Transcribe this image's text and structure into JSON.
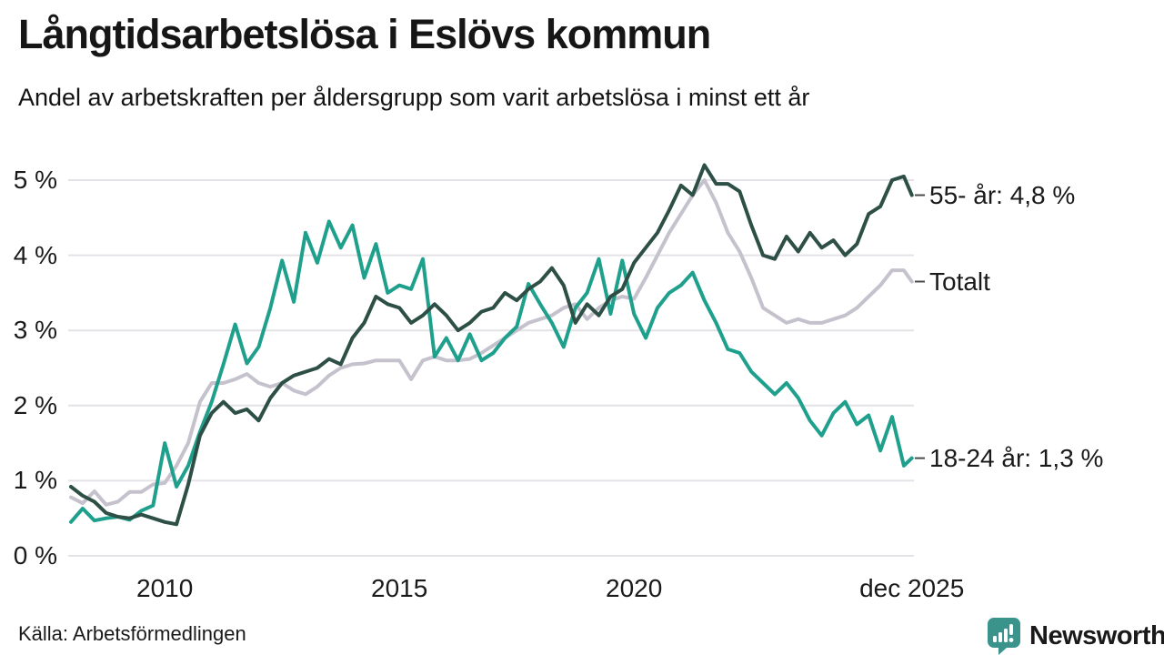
{
  "header": {
    "title": "Långtidsarbetslösa i Eslövs kommun",
    "subtitle": "Andel av arbetskraften per åldersgrupp som varit arbetslösa i minst ett år"
  },
  "footer": {
    "source": "Källa: Arbetsförmedlingen",
    "logo_text": "Newsworthy"
  },
  "colors": {
    "teal_18_24": "#1fa08d",
    "dark_green_55": "#2d4f45",
    "gray_total": "#c5c2cd",
    "grid": "#e4e2e6",
    "text": "#1a1a1a",
    "logo_teal": "#3a948b"
  },
  "chart_data": {
    "type": "line",
    "title": "Långtidsarbetslösa i Eslövs kommun",
    "subtitle": "Andel av arbetskraften per åldersgrupp som varit arbetslösa i minst ett år",
    "grid": true,
    "legend_position": "right-end-labels",
    "xlim": [
      2008,
      2026.2
    ],
    "ylim": [
      0,
      5.45
    ],
    "x_start": 2008,
    "x_step": 0.25,
    "x_last": 2025.92,
    "points_per_series": 73,
    "yticks": [
      {
        "v": 0,
        "label": "0 %"
      },
      {
        "v": 1,
        "label": "1 %"
      },
      {
        "v": 2,
        "label": "2 %"
      },
      {
        "v": 3,
        "label": "3 %"
      },
      {
        "v": 4,
        "label": "4 %"
      },
      {
        "v": 5,
        "label": "5 %"
      }
    ],
    "xticks": [
      {
        "v": 2010,
        "label": "2010"
      },
      {
        "v": 2015,
        "label": "2015"
      },
      {
        "v": 2020,
        "label": "2020"
      },
      {
        "v": 2025.92,
        "label": "dec 2025"
      }
    ],
    "series": [
      {
        "name": "Totalt",
        "end_label": "Totalt",
        "color": "#c5c2cd",
        "final_value": 3.65,
        "values": [
          0.78,
          0.7,
          0.86,
          0.68,
          0.72,
          0.85,
          0.85,
          0.95,
          0.97,
          1.2,
          1.5,
          2.05,
          2.3,
          2.3,
          2.35,
          2.42,
          2.3,
          2.25,
          2.3,
          2.2,
          2.15,
          2.25,
          2.4,
          2.5,
          2.55,
          2.56,
          2.6,
          2.6,
          2.6,
          2.35,
          2.6,
          2.65,
          2.6,
          2.6,
          2.62,
          2.7,
          2.8,
          2.9,
          3.0,
          3.1,
          3.15,
          3.2,
          3.3,
          3.35,
          3.15,
          3.3,
          3.4,
          3.45,
          3.42,
          3.7,
          4.0,
          4.3,
          4.55,
          4.8,
          5.0,
          4.7,
          4.3,
          4.05,
          3.7,
          3.3,
          3.2,
          3.1,
          3.15,
          3.1,
          3.1,
          3.15,
          3.2,
          3.3,
          3.45,
          3.6,
          3.8,
          3.8,
          3.65
        ]
      },
      {
        "name": "18-24 år",
        "end_label": "18-24 år: 1,3 %",
        "color": "#1fa08d",
        "final_value": 1.3,
        "values": [
          0.45,
          0.63,
          0.47,
          0.5,
          0.52,
          0.48,
          0.6,
          0.67,
          1.5,
          0.92,
          1.2,
          1.65,
          2.05,
          2.55,
          3.08,
          2.56,
          2.78,
          3.3,
          3.93,
          3.38,
          4.3,
          3.9,
          4.45,
          4.1,
          4.4,
          3.7,
          4.15,
          3.5,
          3.6,
          3.55,
          3.95,
          2.65,
          2.9,
          2.6,
          2.95,
          2.6,
          2.7,
          2.9,
          3.05,
          3.62,
          3.35,
          3.1,
          2.78,
          3.3,
          3.5,
          3.95,
          3.22,
          3.93,
          3.22,
          2.9,
          3.3,
          3.5,
          3.6,
          3.77,
          3.4,
          3.1,
          2.75,
          2.7,
          2.45,
          2.3,
          2.15,
          2.3,
          2.1,
          1.8,
          1.6,
          1.9,
          2.05,
          1.75,
          1.87,
          1.4,
          1.85,
          1.2,
          1.3
        ]
      },
      {
        "name": "55- år",
        "end_label": "55- år: 4,8 %",
        "color": "#2d4f45",
        "final_value": 4.8,
        "values": [
          0.92,
          0.8,
          0.72,
          0.57,
          0.52,
          0.5,
          0.55,
          0.5,
          0.45,
          0.42,
          0.95,
          1.6,
          1.9,
          2.05,
          1.9,
          1.95,
          1.8,
          2.1,
          2.3,
          2.4,
          2.45,
          2.5,
          2.62,
          2.55,
          2.9,
          3.1,
          3.45,
          3.35,
          3.3,
          3.1,
          3.2,
          3.35,
          3.2,
          3.0,
          3.1,
          3.25,
          3.3,
          3.5,
          3.4,
          3.55,
          3.65,
          3.83,
          3.6,
          3.1,
          3.35,
          3.2,
          3.45,
          3.55,
          3.9,
          4.1,
          4.3,
          4.6,
          4.93,
          4.8,
          5.2,
          4.95,
          4.95,
          4.85,
          4.4,
          4.0,
          3.95,
          4.25,
          4.05,
          4.3,
          4.1,
          4.2,
          4.0,
          4.15,
          4.55,
          4.65,
          5.0,
          5.05,
          4.8
        ]
      }
    ]
  }
}
